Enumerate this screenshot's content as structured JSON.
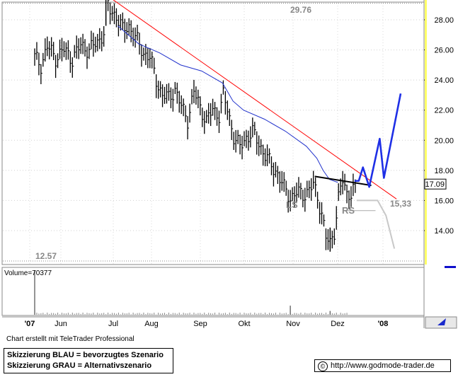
{
  "chart_data": [
    {
      "type": "candlestick",
      "panel": "price",
      "x_labels": [
        "'07",
        "Jun",
        "Jul",
        "Aug",
        "Sep",
        "Okt",
        "Nov",
        "Dez",
        "'08"
      ],
      "y_ticks": [
        "14.00",
        "16.00",
        "18.00",
        "20.00",
        "22.00",
        "24.00",
        "26.00",
        "28.00"
      ],
      "ylim": [
        12.3,
        29.8
      ],
      "high_marker": {
        "label": "29.76",
        "value": 29.76
      },
      "low_marker": {
        "label": "12.57",
        "value": 12.57
      },
      "last_price": {
        "label": "17.09",
        "value": 17.09
      },
      "target_label": {
        "label": "15,33",
        "value": 15.33
      },
      "pattern_labels": [
        "LS",
        "RS"
      ],
      "price_path": [
        [
          0,
          25.5
        ],
        [
          3,
          25.0
        ],
        [
          6,
          26.2
        ],
        [
          10,
          25.5
        ],
        [
          14,
          26.0
        ],
        [
          18,
          25.4
        ],
        [
          22,
          26.3
        ],
        [
          26,
          26.0
        ],
        [
          30,
          26.5
        ],
        [
          33,
          27.2
        ],
        [
          34,
          29.4
        ],
        [
          36,
          28.6
        ],
        [
          39,
          28.3
        ],
        [
          42,
          27.3
        ],
        [
          45,
          27.6
        ],
        [
          48,
          26.8
        ],
        [
          52,
          25.8
        ],
        [
          55,
          25.5
        ],
        [
          58,
          24.0
        ],
        [
          61,
          23.0
        ],
        [
          64,
          22.8
        ],
        [
          67,
          23.4
        ],
        [
          70,
          22.2
        ],
        [
          73,
          21.4
        ],
        [
          76,
          23.2
        ],
        [
          79,
          22.2
        ],
        [
          82,
          21.3
        ],
        [
          85,
          22.0
        ],
        [
          88,
          21.7
        ],
        [
          90,
          23.0
        ],
        [
          92,
          22.0
        ],
        [
          95,
          20.3
        ],
        [
          98,
          19.5
        ],
        [
          101,
          20.2
        ],
        [
          104,
          20.5
        ],
        [
          107,
          19.8
        ],
        [
          110,
          19.0
        ],
        [
          113,
          18.3
        ],
        [
          116,
          17.8
        ],
        [
          119,
          16.8
        ],
        [
          122,
          16.2
        ],
        [
          125,
          16.5
        ],
        [
          128,
          16.4
        ],
        [
          131,
          16.7
        ],
        [
          133,
          17.0
        ],
        [
          135,
          16.2
        ],
        [
          137,
          15.2
        ],
        [
          139,
          13.5
        ],
        [
          141,
          13.1
        ],
        [
          143,
          14.0
        ],
        [
          145,
          16.2
        ],
        [
          147,
          17.3
        ],
        [
          149,
          16.4
        ],
        [
          151,
          16.6
        ],
        [
          153,
          17.0
        ]
      ],
      "moving_average": [
        [
          40,
          27.6
        ],
        [
          50,
          26.4
        ],
        [
          60,
          25.8
        ],
        [
          70,
          25.0
        ],
        [
          80,
          24.6
        ],
        [
          90,
          23.8
        ],
        [
          95,
          22.6
        ],
        [
          100,
          22.0
        ],
        [
          110,
          21.4
        ],
        [
          120,
          20.6
        ],
        [
          130,
          19.6
        ],
        [
          135,
          18.8
        ],
        [
          138,
          18.0
        ],
        [
          141,
          17.4
        ],
        [
          145,
          17.2
        ]
      ],
      "trendlines": [
        {
          "name": "Abwärtstrend",
          "color": "#ff0000",
          "points": [
            [
              34,
              29.7
            ],
            [
              173,
              16.1
            ]
          ]
        },
        {
          "name": "Nackenlinie",
          "color": "#000000",
          "points": [
            [
              134,
              17.6
            ],
            [
              161,
              17.0
            ]
          ]
        }
      ],
      "scenario_blue": {
        "label": "bevorzugtes Szenario",
        "color": "#1e2fe6",
        "points": [
          [
            153,
            17.3
          ],
          [
            155,
            17.3
          ],
          [
            157,
            18.2
          ],
          [
            160,
            16.9
          ],
          [
            165,
            20.1
          ],
          [
            167,
            17.5
          ],
          [
            175,
            23.1
          ]
        ]
      },
      "scenario_grey": {
        "label": "Alternativszenario",
        "color": "#c8c8c8",
        "points": [
          [
            154,
            16.0
          ],
          [
            164,
            16.0
          ],
          [
            168,
            15.0
          ],
          [
            172,
            12.8
          ]
        ]
      },
      "support_line": {
        "value": 15.33
      }
    },
    {
      "type": "bar",
      "panel": "volume",
      "label": "Volume=70377",
      "y_ticks": [
        "2000000",
        "4000000"
      ],
      "ylim": [
        0,
        6000000
      ],
      "spike_values": [
        {
          "x": 0,
          "value": 6000000
        },
        {
          "x": 122,
          "value": 1300000
        },
        {
          "x": 141,
          "value": 600000
        }
      ]
    }
  ],
  "footer": {
    "credit": "Chart erstellt mit TeleTrader Professional",
    "legend_line_1": "Skizzierung BLAU = bevorzugtes Szenario",
    "legend_line_2": "Skizzierung GRAU = Alternativszenario",
    "copyright_symbol": "©",
    "url": "http://www.godmode-trader.de"
  }
}
